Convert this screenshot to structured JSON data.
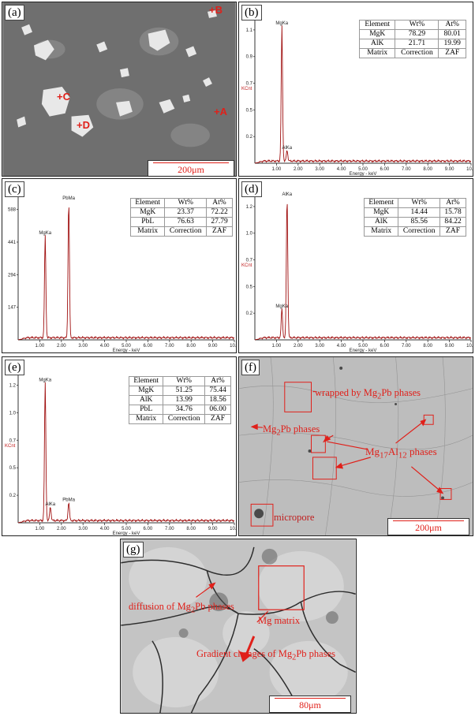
{
  "panels": {
    "a": {
      "label": "(a)",
      "points": [
        "B",
        "C",
        "D",
        "A"
      ],
      "scale": "200μm"
    },
    "b": {
      "label": "(b)"
    },
    "c": {
      "label": "(c)"
    },
    "d": {
      "label": "(d)"
    },
    "e": {
      "label": "(e)"
    },
    "f": {
      "label": "(f)",
      "scale": "200μm",
      "annotations": {
        "wrapped": "wrapped by Mg",
        "wrapped_sub": "2",
        "wrapped_tail": "Pb phases",
        "mg2pb": "Mg",
        "mg2pb_sub": "2",
        "mg2pb_tail": "Pb phases",
        "mg17": "Mg",
        "mg17_sub1": "17",
        "mg17_mid": "Al",
        "mg17_sub2": "12",
        "mg17_tail": " phases",
        "micropore": "micropore"
      }
    },
    "g": {
      "label": "(g)",
      "scale": "80μm",
      "annotations": {
        "diffusion": "diffusion of Mg",
        "diffusion_sub": "2",
        "diffusion_tail": "Pb phases",
        "matrix": "Mg matrix",
        "gradient": "Gradient changes of Mg",
        "gradient_sub": "2",
        "gradient_tail": "Pb phases"
      }
    }
  },
  "tables": {
    "b": {
      "header": [
        "Element",
        "Wt%",
        "At%"
      ],
      "rows": [
        [
          "MgK",
          "78.29",
          "80.01"
        ],
        [
          "AlK",
          "21.71",
          "19.99"
        ],
        [
          "Matrix",
          "Correction",
          "ZAF"
        ]
      ]
    },
    "c": {
      "header": [
        "Element",
        "Wt%",
        "At%"
      ],
      "rows": [
        [
          "MgK",
          "23.37",
          "72.22"
        ],
        [
          "PbL",
          "76.63",
          "27.79"
        ],
        [
          "Matrix",
          "Correction",
          "ZAF"
        ]
      ]
    },
    "d": {
      "header": [
        "Element",
        "Wt%",
        "At%"
      ],
      "rows": [
        [
          "MgK",
          "14.44",
          "15.78"
        ],
        [
          "AlK",
          "85.56",
          "84.22"
        ],
        [
          "Matrix",
          "Correction",
          "ZAF"
        ]
      ]
    },
    "e": {
      "header": [
        "Element",
        "Wt%",
        "At%"
      ],
      "rows": [
        [
          "MgK",
          "51.25",
          "75.44"
        ],
        [
          "AlK",
          "13.99",
          "18.56"
        ],
        [
          "PbL",
          "34.76",
          "06.00"
        ],
        [
          "Matrix",
          "Correction",
          "ZAF"
        ]
      ]
    }
  },
  "chart_data": [
    {
      "id": "b",
      "type": "line",
      "xlabel": "Energy - keV",
      "ylabel": "KCnt",
      "xlim": [
        0,
        10
      ],
      "ylim": [
        0,
        1.33
      ],
      "xticks": [
        "1.00",
        "2.00",
        "3.00",
        "4.00",
        "5.00",
        "6.00",
        "7.00",
        "8.00",
        "9.00",
        "10.0"
      ],
      "yticks": [
        "0.2",
        "0.5",
        "0.7",
        "0.9",
        "1.1"
      ],
      "peaks": [
        {
          "name": "MgKa",
          "x": 1.25,
          "y": 1.23
        },
        {
          "name": "AlKa",
          "x": 1.49,
          "y": 0.1
        }
      ],
      "color": "#a01010"
    },
    {
      "id": "c",
      "type": "line",
      "xlabel": "Energy - keV",
      "ylabel": "",
      "xlim": [
        0,
        10
      ],
      "ylim": [
        0,
        700
      ],
      "xticks": [
        "1.00",
        "2.00",
        "3.00",
        "4.00",
        "5.00",
        "6.00",
        "7.00",
        "8.00",
        "9.00",
        "10.0"
      ],
      "yticks": [
        "147",
        "294",
        "441",
        "588"
      ],
      "peaks": [
        {
          "name": "MgKa",
          "x": 1.25,
          "y": 490
        },
        {
          "name": "PbMa",
          "x": 2.34,
          "y": 655
        }
      ],
      "color": "#a01010"
    },
    {
      "id": "d",
      "type": "line",
      "xlabel": "Energy - keV",
      "ylabel": "KCnt",
      "xlim": [
        0,
        10
      ],
      "ylim": [
        0,
        1.35
      ],
      "xticks": [
        "1.00",
        "2.00",
        "3.00",
        "4.00",
        "5.00",
        "6.00",
        "7.00",
        "8.00",
        "9.00",
        "10.0"
      ],
      "yticks": [
        "0.2",
        "0.5",
        "0.7",
        "1.0",
        "1.2"
      ],
      "peaks": [
        {
          "name": "MgKa",
          "x": 1.25,
          "y": 0.27
        },
        {
          "name": "AlKa",
          "x": 1.49,
          "y": 1.3
        }
      ],
      "color": "#a01010"
    },
    {
      "id": "e",
      "type": "line",
      "xlabel": "Energy - keV",
      "ylabel": "KCnt",
      "xlim": [
        0,
        10
      ],
      "ylim": [
        0,
        1.4
      ],
      "xticks": [
        "1.00",
        "2.00",
        "3.00",
        "4.00",
        "5.00",
        "6.00",
        "7.00",
        "8.00",
        "9.00",
        "10.0"
      ],
      "yticks": [
        "0.2",
        "0.5",
        "0.7",
        "1.0",
        "1.2"
      ],
      "peaks": [
        {
          "name": "MgKa",
          "x": 1.25,
          "y": 1.28
        },
        {
          "name": "AlKa",
          "x": 1.49,
          "y": 0.13
        },
        {
          "name": "PbMa",
          "x": 2.34,
          "y": 0.17
        }
      ],
      "color": "#a01010"
    }
  ]
}
